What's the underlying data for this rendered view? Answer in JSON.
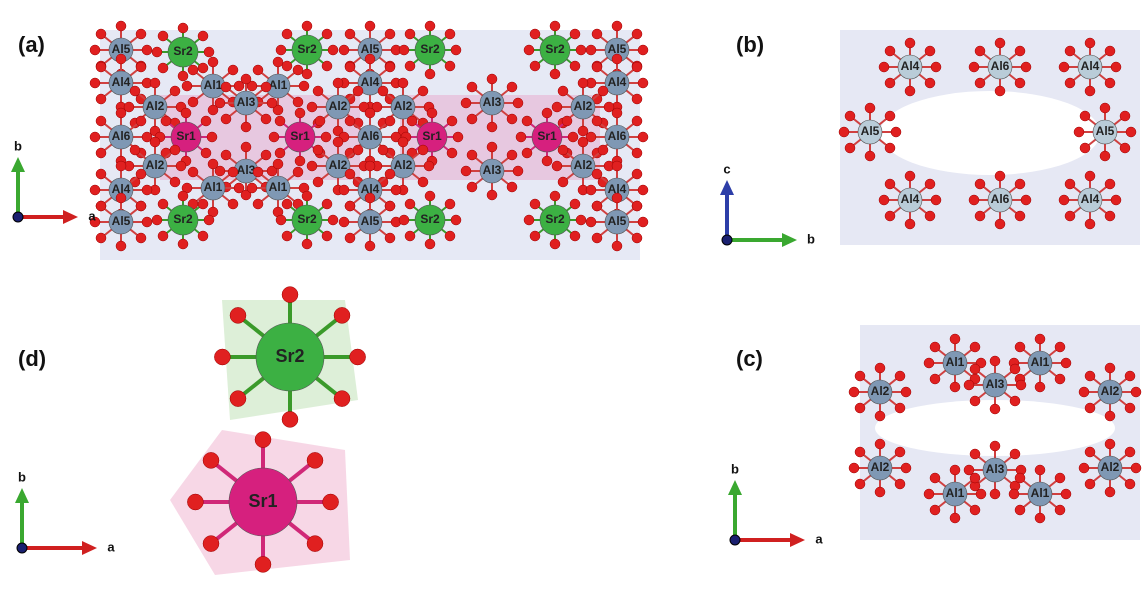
{
  "panels": [
    {
      "label": "(a)",
      "atoms": [
        "Al5",
        "Sr2",
        "Sr2",
        "Al5",
        "Sr2",
        "Sr2",
        "Al5",
        "Al4",
        "Al1",
        "Al1",
        "Al4",
        "Al4",
        "Al2",
        "Al3",
        "Al2",
        "Al2",
        "Al3",
        "Al2",
        "Al6",
        "Sr1",
        "Sr1",
        "Al6",
        "Sr1",
        "Sr1",
        "Al6",
        "Al2",
        "Al3",
        "Al2",
        "Al2",
        "Al3",
        "Al2",
        "Al4",
        "Al1",
        "Al1",
        "Al4",
        "Al4",
        "Al5",
        "Sr2",
        "Sr2",
        "Al5",
        "Sr2",
        "Sr2",
        "Al5"
      ],
      "axes": [
        "b",
        "a"
      ]
    },
    {
      "label": "(b)",
      "atoms": [
        "Al4",
        "Al6",
        "Al4",
        "Al5",
        "Al5",
        "Al4",
        "Al6",
        "Al4"
      ],
      "axes": [
        "c",
        "b"
      ]
    },
    {
      "label": "(c)",
      "atoms": [
        "Al1",
        "Al1",
        "Al2",
        "Al3",
        "Al2",
        "Al2",
        "Al3",
        "Al2",
        "Al1",
        "Al1"
      ],
      "axes": [
        "b",
        "a"
      ]
    },
    {
      "label": "(d)",
      "atoms": [
        "Sr2",
        "Sr1"
      ],
      "axes": [
        "b",
        "a"
      ]
    }
  ]
}
